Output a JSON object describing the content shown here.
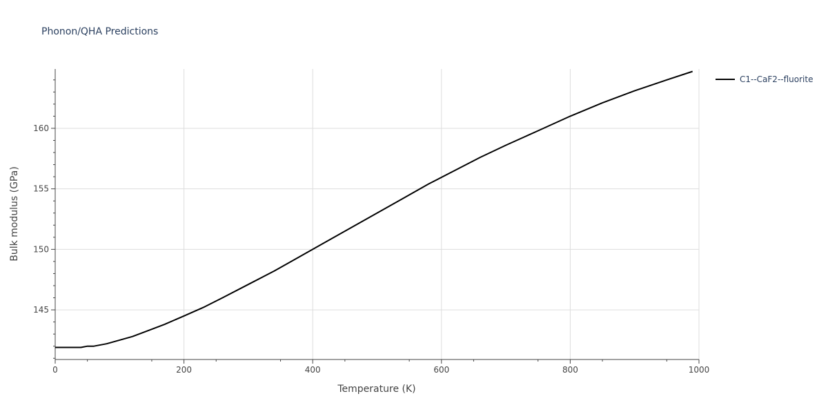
{
  "chart_data": {
    "type": "line",
    "title": "Phonon/QHA Predictions",
    "xlabel": "Temperature (K)",
    "ylabel": "Bulk modulus (GPa)",
    "xlim": [
      0,
      1000
    ],
    "ylim": [
      140.9,
      164.9
    ],
    "xticks": [
      0,
      200,
      400,
      600,
      800,
      1000
    ],
    "yticks": [
      145,
      150,
      155,
      160
    ],
    "grid": true,
    "legend_position": "top-right",
    "series": [
      {
        "name": "C1--CaF2--fluorite",
        "color": "#000000",
        "x": [
          0,
          20,
          40,
          50,
          60,
          80,
          100,
          120,
          140,
          170,
          200,
          230,
          260,
          300,
          340,
          380,
          420,
          460,
          500,
          540,
          580,
          620,
          660,
          700,
          750,
          800,
          850,
          900,
          950,
          990
        ],
        "y": [
          141.9,
          141.9,
          141.9,
          142.0,
          142.0,
          142.2,
          142.5,
          142.8,
          143.2,
          143.8,
          144.5,
          145.2,
          146.0,
          147.1,
          148.2,
          149.4,
          150.6,
          151.8,
          153.0,
          154.2,
          155.4,
          156.5,
          157.6,
          158.6,
          159.8,
          161.0,
          162.1,
          163.1,
          164.0,
          164.7
        ]
      }
    ]
  }
}
